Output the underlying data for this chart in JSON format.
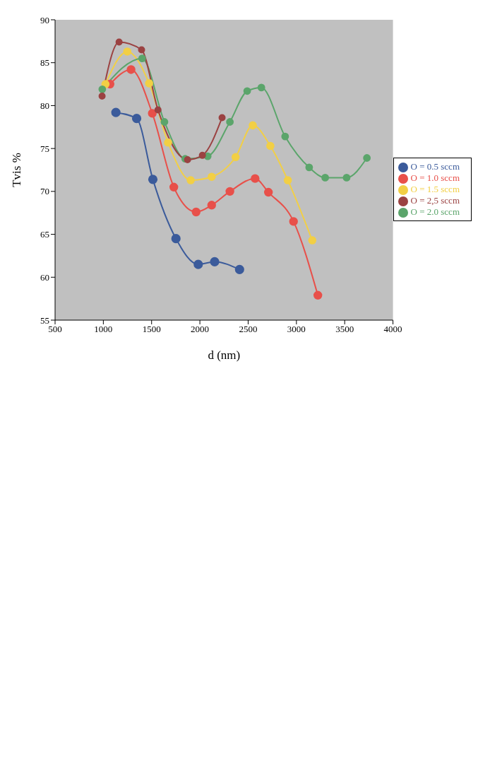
{
  "chart_data": {
    "type": "line",
    "xlabel": "d (nm)",
    "ylabel": "Tvis %",
    "xlim": [
      500,
      4000
    ],
    "xticks": [
      500,
      1000,
      1500,
      2000,
      2500,
      3000,
      3500,
      4000
    ],
    "ylim": [
      55,
      90
    ],
    "yticks": [
      55,
      60,
      65,
      70,
      75,
      80,
      85,
      90
    ],
    "grid": false,
    "legend": "right",
    "marker": "circle",
    "line_style": "solid",
    "series": [
      {
        "name": "O = 0.5 sccm",
        "color": "#3b5b9b",
        "x": [
          1130,
          1345,
          1513,
          1752,
          1983,
          2153,
          2411
        ],
        "values": [
          79.2,
          78.5,
          71.4,
          64.5,
          61.5,
          61.8,
          60.9
        ]
      },
      {
        "name": "O = 1.0 sccm",
        "color": "#e8504a",
        "x": [
          1069,
          1287,
          1507,
          1730,
          1961,
          2122,
          2311,
          2572,
          2710,
          2970,
          3222
        ],
        "values": [
          82.5,
          84.2,
          79.1,
          70.5,
          67.6,
          68.4,
          70.0,
          71.5,
          69.9,
          66.5,
          57.9
        ]
      },
      {
        "name": "O = 1.5 sccm",
        "color": "#f2cf45",
        "x": [
          1022,
          1248,
          1474,
          1670,
          1905,
          2122,
          2370,
          2548,
          2730,
          2911,
          3164
        ],
        "values": [
          82.5,
          86.3,
          82.6,
          75.7,
          71.3,
          71.7,
          74.0,
          77.7,
          75.3,
          71.3,
          64.3
        ]
      },
      {
        "name": "O = 2.0 sccm",
        "color": "#5ba56b",
        "x": [
          989,
          1402,
          1633,
          1848,
          2081,
          2311,
          2490,
          2637,
          2883,
          3132,
          3298,
          3520,
          3730
        ],
        "values": [
          81.9,
          85.5,
          78.1,
          73.8,
          74.1,
          78.1,
          81.7,
          82.1,
          76.4,
          72.8,
          71.6,
          71.6,
          73.9
        ]
      },
      {
        "name": "O = 2,5 sccm",
        "color": "#9b4242",
        "x": [
          987,
          1163,
          1396,
          1566,
          1872,
          2026,
          2230
        ],
        "values": [
          81.1,
          87.4,
          86.5,
          79.5,
          73.7,
          74.2,
          78.6
        ]
      }
    ]
  }
}
